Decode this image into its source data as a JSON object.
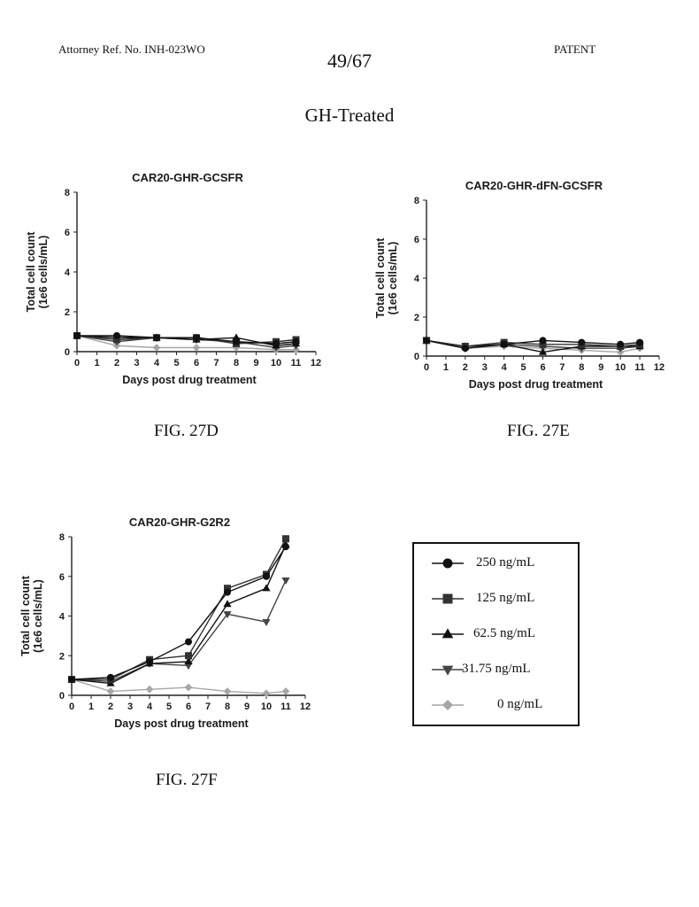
{
  "header": {
    "attorney_ref": "Attorney Ref. No. INH-023WO",
    "page_number": "49/67",
    "patent_label": "PATENT"
  },
  "heading": "GH-Treated",
  "legend": {
    "entries": [
      {
        "label": "250 ng/mL",
        "marker": "circle",
        "color": "#111111"
      },
      {
        "label": "125 ng/mL",
        "marker": "square",
        "color": "#333333"
      },
      {
        "label": "62.5 ng/mL",
        "marker": "triangle-up",
        "color": "#111111"
      },
      {
        "label": "31.75 ng/mL",
        "marker": "triangle-down",
        "color": "#444444"
      },
      {
        "label": "0 ng/mL",
        "marker": "diamond",
        "color": "#a6a6a6"
      }
    ]
  },
  "chart_data": [
    {
      "figure_label": "FIG. 27D",
      "type": "line",
      "title": "CAR20-GHR-GCSFR",
      "xlabel": "Days post drug treatment",
      "ylabel_line1": "Total cell count",
      "ylabel_line2": "(1e6 cells/mL)",
      "xlim": [
        0,
        12
      ],
      "ylim": [
        0,
        8
      ],
      "xticks": [
        "0",
        "1",
        "2",
        "3",
        "4",
        "5",
        "6",
        "7",
        "8",
        "9",
        "10",
        "11",
        "12"
      ],
      "yticks": [
        "0",
        "2",
        "4",
        "6",
        "8"
      ],
      "grid": false,
      "series": [
        {
          "marker": "circle",
          "x": [
            0,
            2,
            4,
            6,
            8,
            10,
            11
          ],
          "y": [
            0.8,
            0.8,
            0.7,
            0.7,
            0.5,
            0.4,
            0.5
          ]
        },
        {
          "marker": "square",
          "x": [
            0,
            2,
            4,
            6,
            8,
            10,
            11
          ],
          "y": [
            0.8,
            0.6,
            0.7,
            0.7,
            0.4,
            0.5,
            0.6
          ]
        },
        {
          "marker": "triangle-up",
          "x": [
            0,
            2,
            4,
            6,
            8,
            10,
            11
          ],
          "y": [
            0.8,
            0.7,
            0.7,
            0.6,
            0.7,
            0.3,
            0.4
          ]
        },
        {
          "marker": "triangle-down",
          "x": [
            0,
            2,
            4,
            6,
            8,
            10,
            11
          ],
          "y": [
            0.8,
            0.5,
            0.7,
            0.6,
            0.5,
            0.2,
            0.3
          ]
        },
        {
          "marker": "diamond",
          "x": [
            0,
            2,
            4,
            6,
            8,
            10,
            11
          ],
          "y": [
            0.8,
            0.3,
            0.2,
            0.2,
            0.2,
            0.1,
            0.1
          ]
        }
      ]
    },
    {
      "figure_label": "FIG. 27E",
      "type": "line",
      "title": "CAR20-GHR-dFN-GCSFR",
      "xlabel": "Days post drug treatment",
      "ylabel_line1": "Total cell count",
      "ylabel_line2": "(1e6 cells/mL)",
      "xlim": [
        0,
        12
      ],
      "ylim": [
        0,
        8
      ],
      "xticks": [
        "0",
        "1",
        "2",
        "3",
        "4",
        "5",
        "6",
        "7",
        "8",
        "9",
        "10",
        "11",
        "12"
      ],
      "yticks": [
        "0",
        "2",
        "4",
        "6",
        "8"
      ],
      "grid": false,
      "series": [
        {
          "marker": "circle",
          "x": [
            0,
            2,
            4,
            6,
            8,
            10,
            11
          ],
          "y": [
            0.8,
            0.4,
            0.6,
            0.8,
            0.7,
            0.6,
            0.7
          ]
        },
        {
          "marker": "square",
          "x": [
            0,
            2,
            4,
            6,
            8,
            10,
            11
          ],
          "y": [
            0.8,
            0.5,
            0.7,
            0.6,
            0.6,
            0.5,
            0.6
          ]
        },
        {
          "marker": "triangle-up",
          "x": [
            0,
            2,
            4,
            6,
            8,
            10,
            11
          ],
          "y": [
            0.8,
            0.5,
            0.6,
            0.2,
            0.5,
            0.5,
            0.5
          ]
        },
        {
          "marker": "triangle-down",
          "x": [
            0,
            2,
            4,
            6,
            8,
            10,
            11
          ],
          "y": [
            0.8,
            0.4,
            0.6,
            0.5,
            0.4,
            0.4,
            0.5
          ]
        },
        {
          "marker": "diamond",
          "x": [
            0,
            2,
            4,
            6,
            8,
            10,
            11
          ],
          "y": [
            0.8,
            0.4,
            0.5,
            0.4,
            0.3,
            0.2,
            0.4
          ]
        }
      ]
    },
    {
      "figure_label": "FIG. 27F",
      "type": "line",
      "title": "CAR20-GHR-G2R2",
      "xlabel": "Days post drug treatment",
      "ylabel_line1": "Total cell count",
      "ylabel_line2": "(1e6 cells/mL)",
      "xlim": [
        0,
        12
      ],
      "ylim": [
        0,
        8
      ],
      "xticks": [
        "0",
        "1",
        "2",
        "3",
        "4",
        "5",
        "6",
        "7",
        "8",
        "9",
        "10",
        "11",
        "12"
      ],
      "yticks": [
        "0",
        "2",
        "4",
        "6",
        "8"
      ],
      "grid": false,
      "series": [
        {
          "marker": "circle",
          "x": [
            0,
            2,
            4,
            6,
            8,
            10,
            11
          ],
          "y": [
            0.8,
            0.9,
            1.7,
            2.7,
            5.2,
            6.0,
            7.5
          ]
        },
        {
          "marker": "square",
          "x": [
            0,
            2,
            4,
            6,
            8,
            10,
            11
          ],
          "y": [
            0.8,
            0.8,
            1.8,
            2.0,
            5.4,
            6.1,
            7.9
          ]
        },
        {
          "marker": "triangle-up",
          "x": [
            0,
            2,
            4,
            6,
            8,
            10,
            11
          ],
          "y": [
            0.8,
            0.6,
            1.6,
            1.7,
            4.6,
            5.4,
            7.6
          ]
        },
        {
          "marker": "triangle-down",
          "x": [
            0,
            2,
            4,
            6,
            8,
            10,
            11
          ],
          "y": [
            0.8,
            0.7,
            1.6,
            1.5,
            4.1,
            3.7,
            5.8
          ]
        },
        {
          "marker": "diamond",
          "x": [
            0,
            2,
            4,
            6,
            8,
            10,
            11
          ],
          "y": [
            0.8,
            0.2,
            0.3,
            0.4,
            0.2,
            0.1,
            0.2
          ]
        }
      ]
    }
  ]
}
